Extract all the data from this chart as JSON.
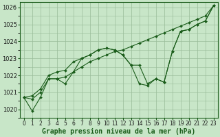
{
  "title": "Graphe pression niveau de la mer (hPa)",
  "background_color": "#c8e6c8",
  "plot_bg_color": "#c8e6c8",
  "grid_color": "#99bb99",
  "line_color": "#1a5c1a",
  "marker_color": "#1a5c1a",
  "xlim": [
    -0.5,
    23.5
  ],
  "ylim": [
    1019.5,
    1026.3
  ],
  "yticks": [
    1020,
    1021,
    1022,
    1023,
    1024,
    1025,
    1026
  ],
  "xticks": [
    0,
    1,
    2,
    3,
    4,
    5,
    6,
    7,
    8,
    9,
    10,
    11,
    12,
    13,
    14,
    15,
    16,
    17,
    18,
    19,
    20,
    21,
    22,
    23
  ],
  "series": [
    [
      1020.7,
      1019.9,
      1020.7,
      1021.8,
      1021.8,
      1021.5,
      1022.2,
      1023.0,
      1023.2,
      1023.5,
      1023.6,
      1023.5,
      1023.2,
      1022.6,
      1021.5,
      1021.4,
      1021.8,
      1021.6,
      1023.4,
      1024.6,
      1024.7,
      1025.0,
      1025.2,
      1026.1
    ],
    [
      1020.7,
      1020.6,
      1021.0,
      1021.8,
      1021.8,
      1021.9,
      1022.2,
      1022.5,
      1022.8,
      1023.0,
      1023.2,
      1023.4,
      1023.5,
      1023.7,
      1023.9,
      1024.1,
      1024.3,
      1024.5,
      1024.7,
      1024.9,
      1025.1,
      1025.3,
      1025.5,
      1026.1
    ],
    [
      1020.7,
      1020.8,
      1021.2,
      1022.0,
      1022.2,
      1022.3,
      1022.8,
      1023.0,
      1023.2,
      1023.5,
      1023.6,
      1023.5,
      1023.2,
      1022.6,
      1022.6,
      1021.5,
      1021.8,
      1021.6,
      1023.4,
      1024.6,
      1024.7,
      1025.0,
      1025.2,
      1026.1
    ]
  ],
  "title_fontsize": 7,
  "tick_fontsize": 6,
  "ylabel_fontsize": 6
}
